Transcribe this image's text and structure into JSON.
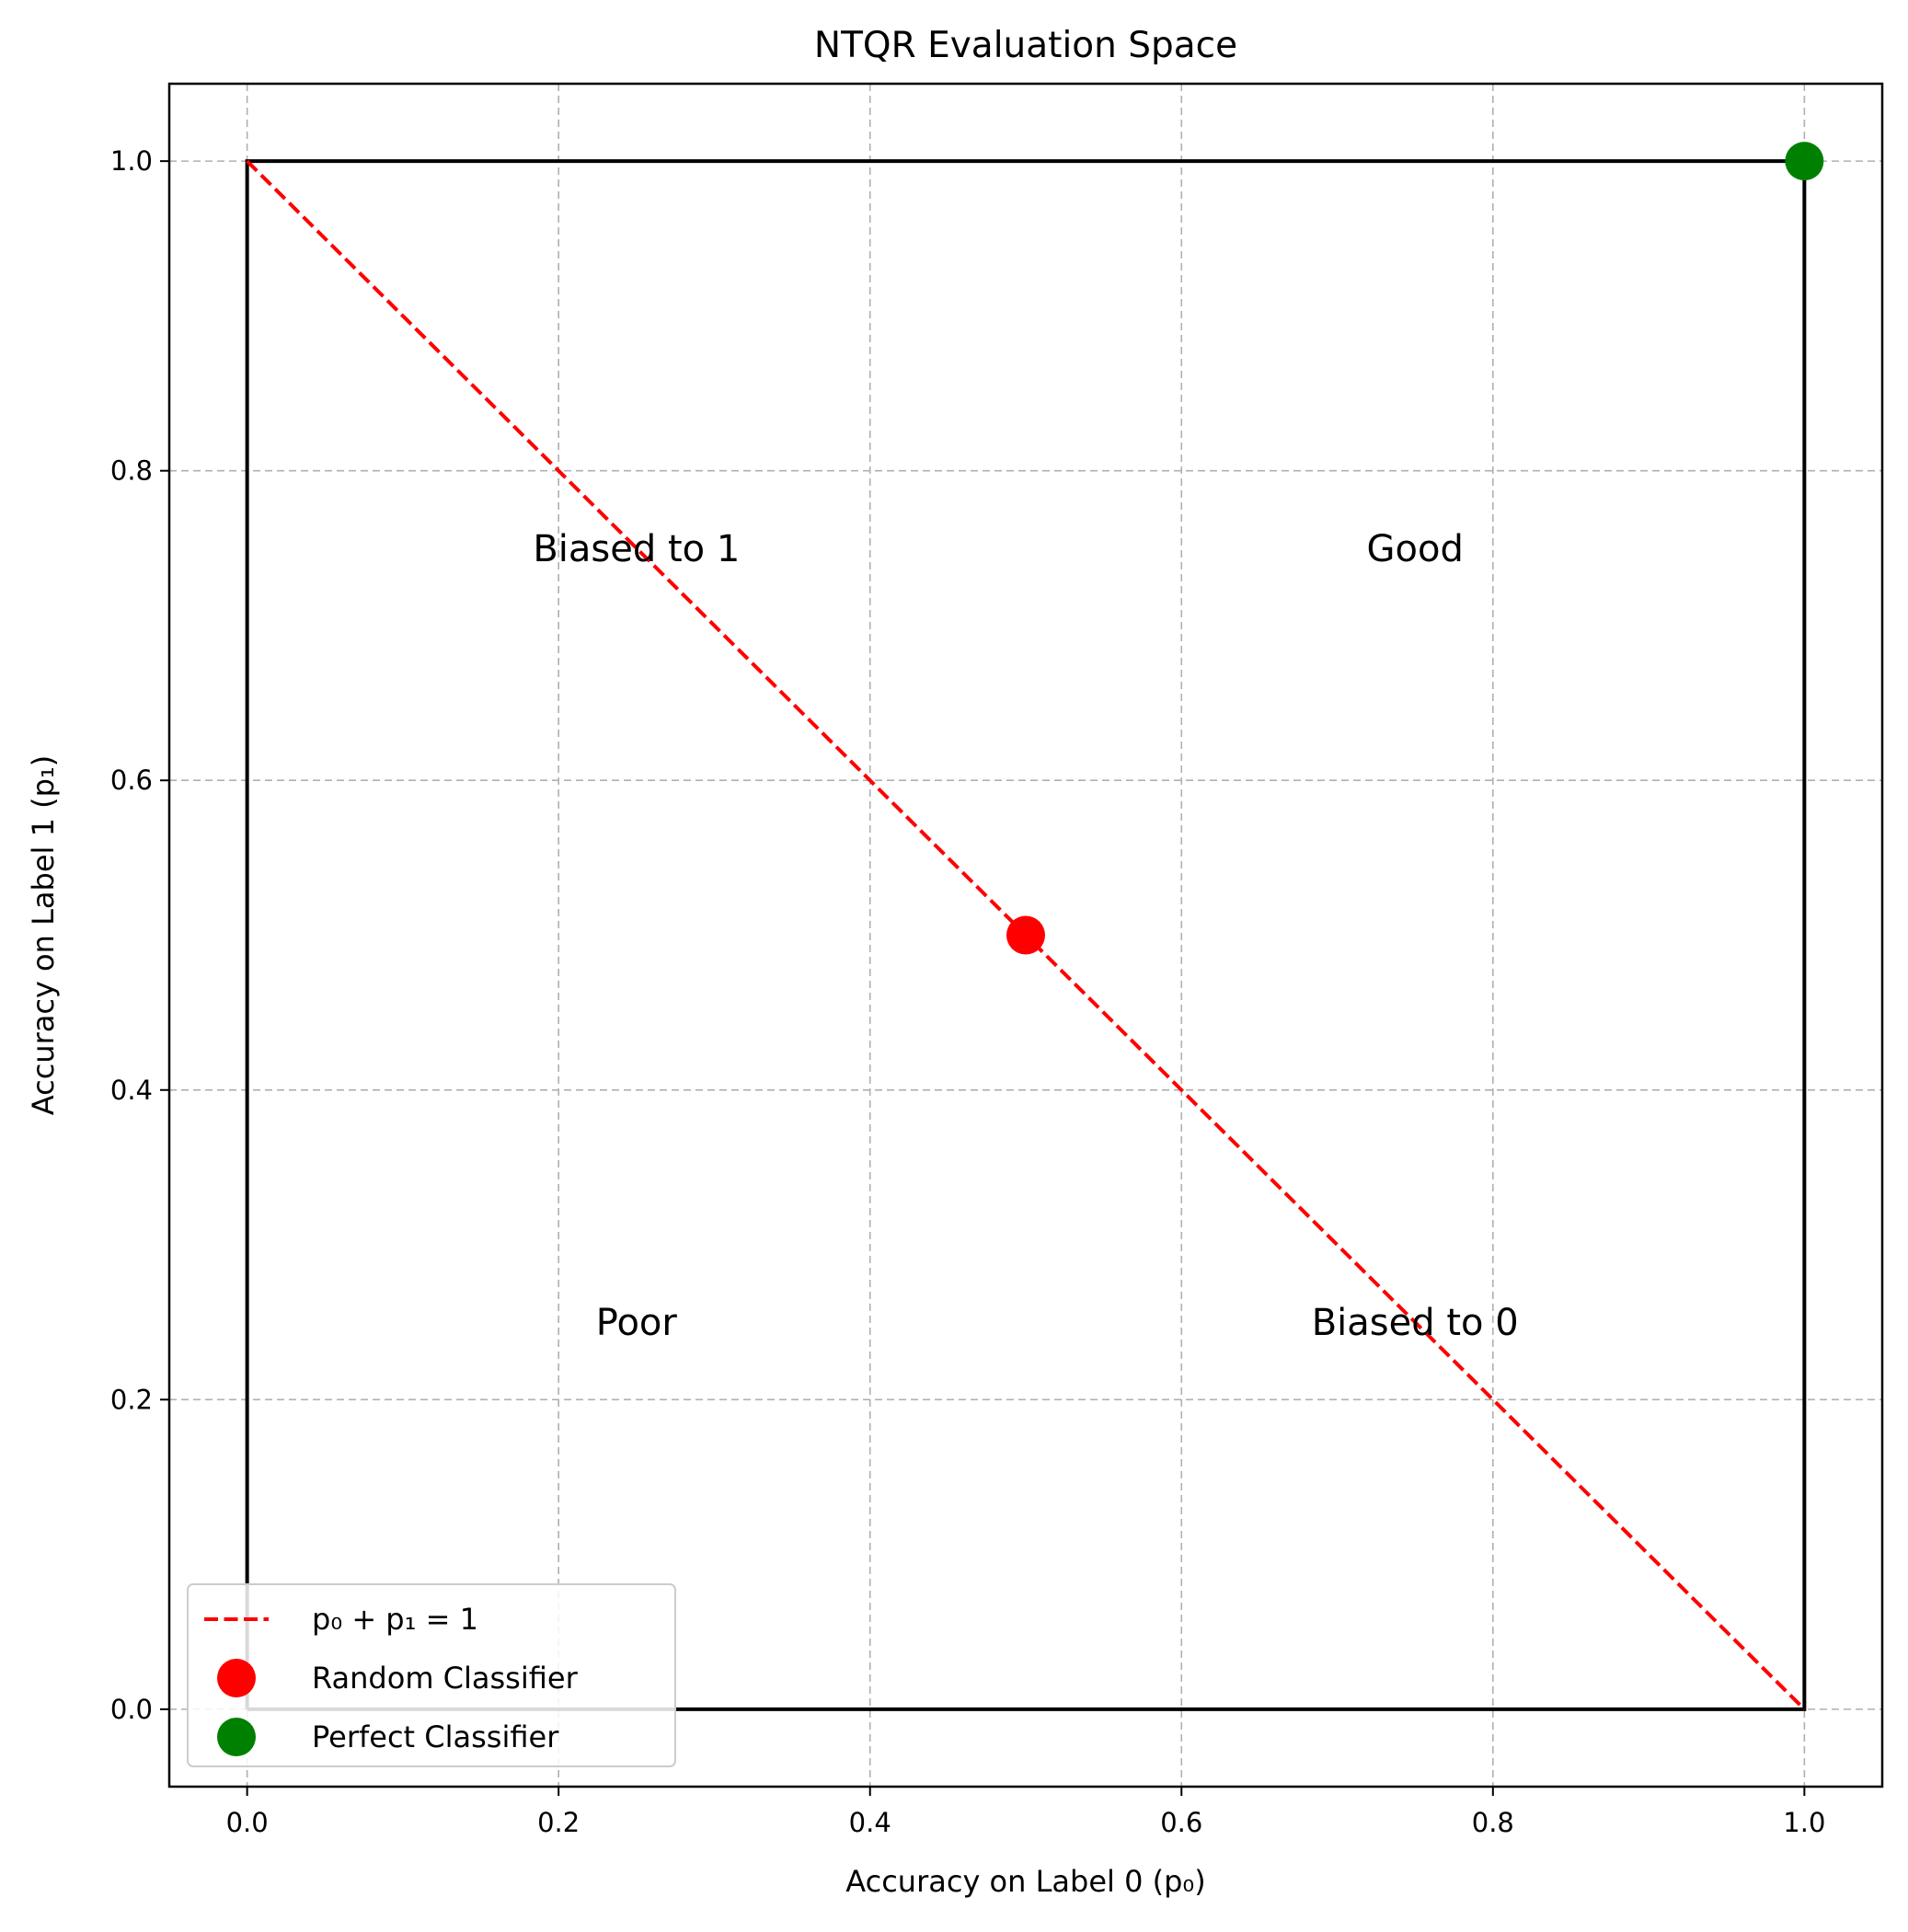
{
  "chart_data": {
    "type": "scatter",
    "title": "NTQR Evaluation Space",
    "xlabel": "Accuracy on Label 0 (p₀)",
    "ylabel": "Accuracy on Label 1 (p₁)",
    "xlim": [
      -0.05,
      1.05
    ],
    "ylim": [
      -0.05,
      1.05
    ],
    "xticks": [
      0.0,
      0.2,
      0.4,
      0.6,
      0.8,
      1.0
    ],
    "yticks": [
      0.0,
      0.2,
      0.4,
      0.6,
      0.8,
      1.0
    ],
    "x_tick_labels": [
      "0.0",
      "0.2",
      "0.4",
      "0.6",
      "0.8",
      "1.0"
    ],
    "y_tick_labels": [
      "0.0",
      "0.2",
      "0.4",
      "0.6",
      "0.8",
      "1.0"
    ],
    "grid": true,
    "boundary_square": {
      "x": [
        0,
        1,
        1,
        0,
        0
      ],
      "y": [
        0,
        0,
        1,
        1,
        0
      ],
      "color": "#000000"
    },
    "series": [
      {
        "name": "p₀ + p₁ = 1",
        "kind": "line",
        "style": "dashed",
        "color": "#ff0000",
        "x": [
          0,
          1
        ],
        "y": [
          1,
          0
        ]
      },
      {
        "name": "Random Classifier",
        "kind": "point",
        "color": "#ff0000",
        "x": [
          0.5
        ],
        "y": [
          0.5
        ]
      },
      {
        "name": "Perfect Classifier",
        "kind": "point",
        "color": "#008000",
        "x": [
          1.0
        ],
        "y": [
          1.0
        ]
      }
    ],
    "annotations": [
      {
        "text": "Biased to 1",
        "x": 0.25,
        "y": 0.75
      },
      {
        "text": "Good",
        "x": 0.75,
        "y": 0.75
      },
      {
        "text": "Poor",
        "x": 0.25,
        "y": 0.25
      },
      {
        "text": "Biased to 0",
        "x": 0.75,
        "y": 0.25
      }
    ],
    "legend_placement": "lower-left"
  }
}
